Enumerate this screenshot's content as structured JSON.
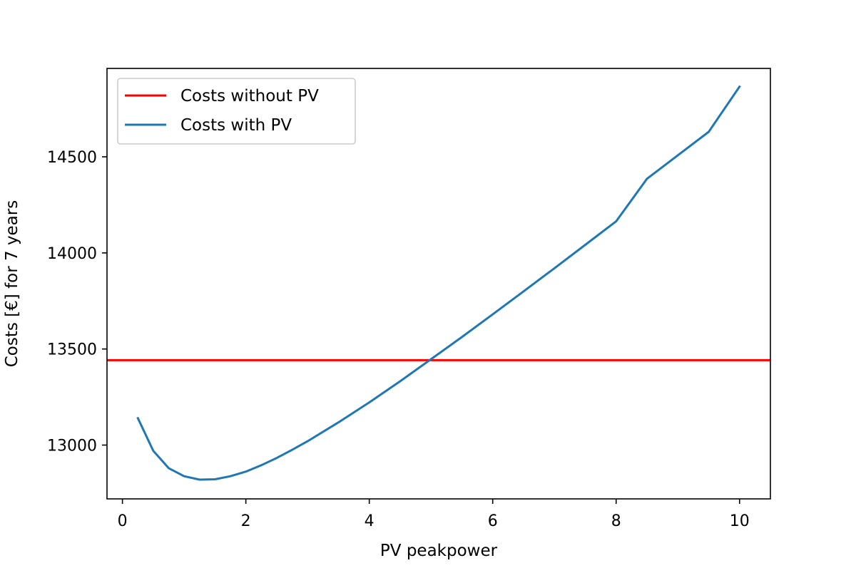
{
  "chart_data": {
    "type": "line",
    "title": "",
    "xlabel": "PV peakpower",
    "ylabel": "Costs [€] for 7 years",
    "xlim": [
      -0.25,
      10.5
    ],
    "ylim": [
      12720,
      14960
    ],
    "xticks": [
      0,
      2,
      4,
      6,
      8,
      10
    ],
    "yticks": [
      13000,
      13500,
      14000,
      14500
    ],
    "grid": false,
    "legend_position": "upper-left",
    "series": [
      {
        "name": "Costs without PV",
        "color": "#ff0000",
        "kind": "hline",
        "y": 13442
      },
      {
        "name": "Costs with PV",
        "color": "#1f77b4",
        "kind": "line",
        "x": [
          0.25,
          0.5,
          0.75,
          1.0,
          1.25,
          1.5,
          1.75,
          2.0,
          2.25,
          2.5,
          2.75,
          3.0,
          3.5,
          4.0,
          4.5,
          5.0,
          5.5,
          6.0,
          6.5,
          7.0,
          7.5,
          8.0,
          8.5,
          9.0,
          9.5,
          10.0
        ],
        "y": [
          13140,
          12970,
          12880,
          12838,
          12820,
          12822,
          12838,
          12862,
          12895,
          12933,
          12975,
          13020,
          13118,
          13222,
          13332,
          13447,
          13562,
          13680,
          13800,
          13920,
          14042,
          14164,
          14386,
          14508,
          14630,
          14865
        ]
      }
    ]
  }
}
